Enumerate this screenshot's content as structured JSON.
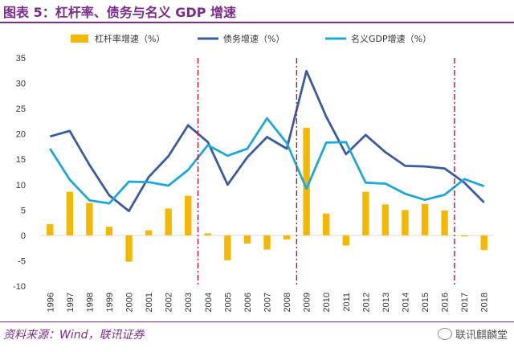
{
  "title": "图表 5：杠杆率、债务与名义 GDP 增速",
  "source": "资料来源：Wind，联讯证券",
  "watermark": "联讯麒麟堂",
  "watermark_icon": "wechat-icon",
  "colors": {
    "bar": "#f5b800",
    "debt": "#3a5ba0",
    "gdp": "#1ea8d8",
    "vline": "#c0102a",
    "title": "#7b2c8a"
  },
  "chart_data": {
    "type": "bar",
    "categories": [
      "1996",
      "1997",
      "1998",
      "1999",
      "2000",
      "2001",
      "2002",
      "2003",
      "2004",
      "2005",
      "2006",
      "2007",
      "2008",
      "2009",
      "2010",
      "2011",
      "2012",
      "2013",
      "2014",
      "2015",
      "2016",
      "2017",
      "2018"
    ],
    "ylim": [
      -10,
      35
    ],
    "yticks": [
      "-10",
      "-5",
      "0",
      "5",
      "10",
      "15",
      "20",
      "25",
      "30",
      "35"
    ],
    "legend_position": "top",
    "series": [
      {
        "name": "杠杆率增速（%）",
        "type": "bar",
        "values": [
          2.2,
          8.6,
          6.4,
          1.7,
          -5.2,
          1.0,
          5.3,
          7.8,
          0.4,
          -4.9,
          -1.6,
          -2.8,
          -0.8,
          21.2,
          4.3,
          -2.0,
          8.6,
          6.1,
          5.0,
          6.2,
          4.9,
          -0.2,
          -2.9
        ]
      },
      {
        "name": "债务增速（%）",
        "type": "line",
        "values": [
          19.5,
          20.6,
          13.9,
          7.9,
          4.8,
          11.5,
          15.6,
          21.7,
          18.4,
          10.0,
          15.4,
          19.4,
          17.1,
          32.4,
          23.4,
          16.0,
          19.8,
          16.4,
          13.7,
          13.6,
          13.2,
          10.4,
          6.5
        ]
      },
      {
        "name": "名义GDP增速（%）",
        "type": "line",
        "values": [
          17.1,
          11.0,
          6.9,
          6.3,
          10.6,
          10.5,
          9.8,
          12.9,
          17.8,
          15.7,
          17.1,
          23.1,
          18.2,
          9.2,
          18.3,
          18.4,
          10.4,
          10.2,
          8.2,
          7.0,
          8.0,
          11.1,
          9.7
        ]
      }
    ],
    "vlines_at": [
      "2003.5",
      "2008.5",
      "2016.5"
    ]
  }
}
